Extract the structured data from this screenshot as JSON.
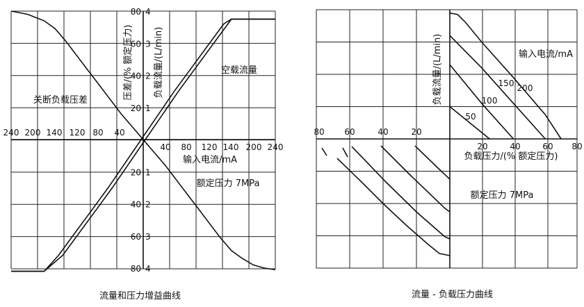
{
  "chart_data": [
    {
      "type": "line",
      "caption": "流量和压力增益曲线",
      "xlabel": "输入电流/mA",
      "x_ticks": [
        "240",
        "200",
        "140",
        "120",
        "80",
        "40",
        "40",
        "80",
        "120",
        "140",
        "200",
        "240"
      ],
      "left_axis_label": "压差/(% 额定压力)",
      "left_ticks": [
        "80",
        "60",
        "40",
        "20",
        "20",
        "40",
        "60",
        "80"
      ],
      "right_axis_label": "负载流量/(L/min)",
      "right_ticks": [
        "4",
        "3",
        "2",
        "1",
        "1",
        "2",
        "3",
        "4"
      ],
      "grid": true,
      "annotations": {
        "flow": "空载流量",
        "shutoff": "关断负载压差",
        "pressure": "额定压力 7MPa"
      },
      "series": [
        {
          "name": "空载流量",
          "x": [
            -240,
            -180,
            -150,
            -120,
            -90,
            -60,
            -30,
            0,
            30,
            60,
            90,
            120,
            150,
            160,
            200,
            240
          ],
          "y": [
            -4.1,
            -4.1,
            -3.6,
            -2.9,
            -2.2,
            -1.5,
            -0.75,
            0,
            0.75,
            1.5,
            2.2,
            2.9,
            3.6,
            3.75,
            3.75,
            3.75
          ]
        },
        {
          "name": "关断负载压差",
          "x": [
            -240,
            -210,
            -180,
            -160,
            -140,
            -120,
            -100,
            -80,
            -60,
            -40,
            -20,
            0,
            20,
            40,
            60,
            80,
            100,
            120,
            140,
            160,
            180,
            200,
            220,
            240
          ],
          "y": [
            80,
            78,
            74,
            69,
            61,
            52,
            43,
            34,
            25,
            16,
            8,
            0,
            -8,
            -16,
            -25,
            -34,
            -43,
            -52,
            -61,
            -69,
            -74,
            -78,
            -80,
            -81
          ]
        }
      ]
    },
    {
      "type": "line",
      "caption": "流量 - 负载压力曲线",
      "xlabel": "负载压力/(% 额定压力)",
      "ylabel": "负载流量/(L/min)",
      "legend_title": "输入电流/mA",
      "pressure_note": "额定压力 7MPa",
      "x_ticks_right": [
        "20",
        "40",
        "60",
        "80"
      ],
      "x_ticks_left": [
        "80",
        "60",
        "40",
        "20"
      ],
      "grid": true,
      "series": [
        {
          "name": "200",
          "x": [
            0,
            5,
            10,
            20,
            40,
            60,
            70
          ],
          "y": [
            3.9,
            3.85,
            3.6,
            3.0,
            1.9,
            0.75,
            0
          ]
        },
        {
          "name": "150",
          "x": [
            0,
            20,
            40,
            60
          ],
          "y": [
            3.2,
            2.2,
            1.1,
            0
          ]
        },
        {
          "name": "100",
          "x": [
            0,
            20,
            40
          ],
          "y": [
            2.3,
            1.1,
            0
          ]
        },
        {
          "name": "50",
          "x": [
            0,
            10,
            20,
            25
          ],
          "y": [
            1.0,
            0.6,
            0.2,
            0
          ]
        }
      ]
    }
  ]
}
